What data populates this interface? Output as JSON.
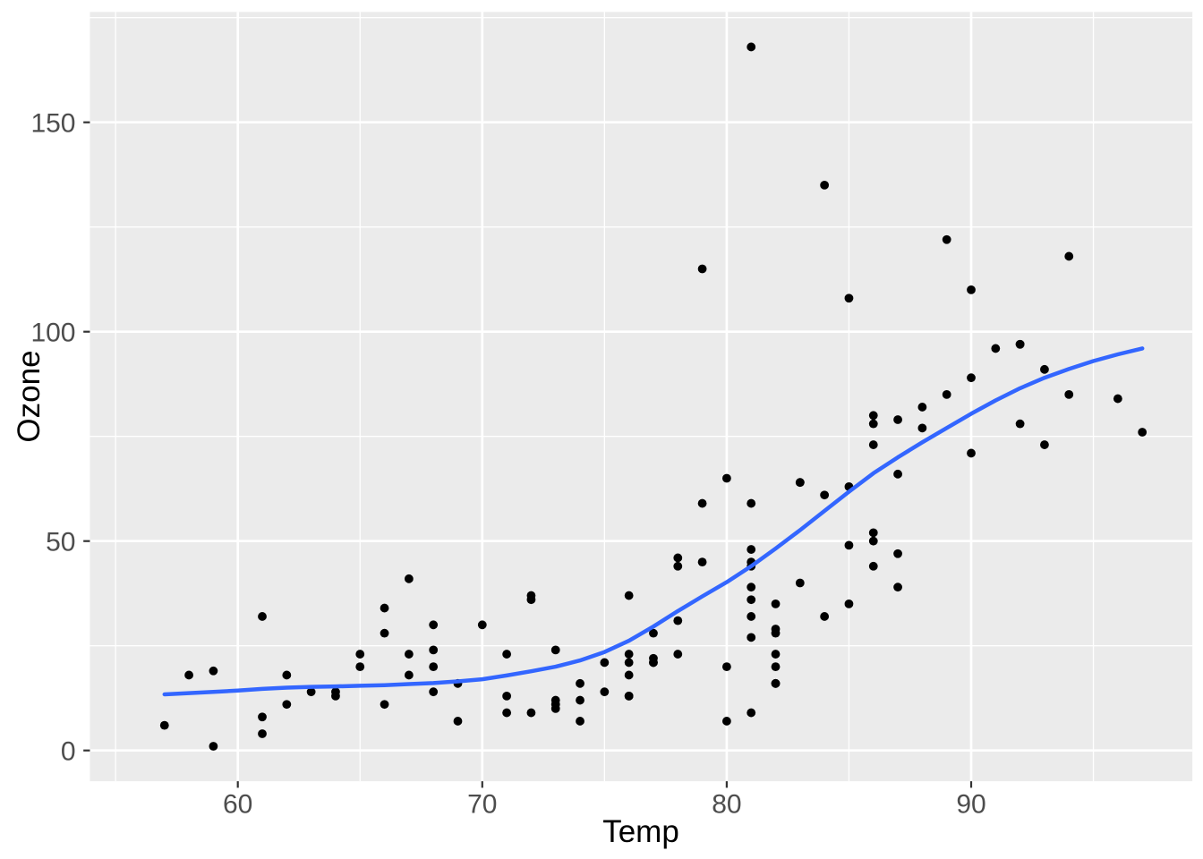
{
  "chart_data": {
    "type": "scatter",
    "title": "",
    "xlabel": "Temp",
    "ylabel": "Ozone",
    "xlim": [
      53.95,
      99.05
    ],
    "ylim": [
      -7.35,
      176.35
    ],
    "x_major_ticks": [
      60,
      70,
      80,
      90
    ],
    "x_minor_ticks": [
      55,
      65,
      75,
      85,
      95
    ],
    "y_major_ticks": [
      0,
      50,
      100,
      150
    ],
    "y_minor_ticks": [
      25,
      75,
      125,
      175
    ],
    "grid": "on",
    "legend": "none",
    "theme": {
      "panel_background": "#EBEBEB",
      "grid_color": "#FFFFFF",
      "point_color": "#000000",
      "smooth_line_color": "#3366FF",
      "tick_mark_color": "#333333",
      "tick_label_color": "#4D4D4D",
      "axis_title_color": "#000000",
      "outer_background": "#FFFFFF"
    },
    "series": [
      {
        "name": "observations",
        "geom": "point",
        "points": [
          [
            67,
            41
          ],
          [
            72,
            36
          ],
          [
            74,
            12
          ],
          [
            62,
            18
          ],
          [
            66,
            28
          ],
          [
            65,
            23
          ],
          [
            59,
            19
          ],
          [
            61,
            8
          ],
          [
            74,
            7
          ],
          [
            69,
            16
          ],
          [
            66,
            11
          ],
          [
            68,
            14
          ],
          [
            58,
            18
          ],
          [
            64,
            14
          ],
          [
            66,
            34
          ],
          [
            57,
            6
          ],
          [
            68,
            30
          ],
          [
            62,
            11
          ],
          [
            59,
            1
          ],
          [
            73,
            11
          ],
          [
            61,
            4
          ],
          [
            61,
            32
          ],
          [
            67,
            23
          ],
          [
            81,
            45
          ],
          [
            79,
            115
          ],
          [
            76,
            37
          ],
          [
            82,
            29
          ],
          [
            90,
            71
          ],
          [
            87,
            39
          ],
          [
            82,
            23
          ],
          [
            77,
            21
          ],
          [
            72,
            37
          ],
          [
            65,
            20
          ],
          [
            73,
            12
          ],
          [
            76,
            13
          ],
          [
            84,
            135
          ],
          [
            85,
            49
          ],
          [
            81,
            32
          ],
          [
            83,
            64
          ],
          [
            83,
            40
          ],
          [
            88,
            77
          ],
          [
            92,
            97
          ],
          [
            92,
            97
          ],
          [
            89,
            85
          ],
          [
            73,
            10
          ],
          [
            81,
            27
          ],
          [
            80,
            7
          ],
          [
            81,
            48
          ],
          [
            82,
            35
          ],
          [
            84,
            61
          ],
          [
            87,
            79
          ],
          [
            85,
            63
          ],
          [
            74,
            16
          ],
          [
            86,
            80
          ],
          [
            85,
            108
          ],
          [
            82,
            20
          ],
          [
            86,
            52
          ],
          [
            88,
            82
          ],
          [
            86,
            50
          ],
          [
            83,
            64
          ],
          [
            81,
            59
          ],
          [
            81,
            39
          ],
          [
            81,
            9
          ],
          [
            82,
            16
          ],
          [
            86,
            78
          ],
          [
            85,
            35
          ],
          [
            87,
            66
          ],
          [
            89,
            122
          ],
          [
            90,
            89
          ],
          [
            90,
            110
          ],
          [
            86,
            44
          ],
          [
            82,
            28
          ],
          [
            80,
            65
          ],
          [
            77,
            22
          ],
          [
            79,
            59
          ],
          [
            76,
            23
          ],
          [
            78,
            31
          ],
          [
            78,
            44
          ],
          [
            77,
            21
          ],
          [
            72,
            9
          ],
          [
            79,
            45
          ],
          [
            81,
            168
          ],
          [
            86,
            73
          ],
          [
            97,
            76
          ],
          [
            94,
            118
          ],
          [
            96,
            84
          ],
          [
            94,
            85
          ],
          [
            91,
            96
          ],
          [
            92,
            78
          ],
          [
            93,
            73
          ],
          [
            93,
            91
          ],
          [
            87,
            47
          ],
          [
            84,
            32
          ],
          [
            80,
            20
          ],
          [
            78,
            23
          ],
          [
            75,
            21
          ],
          [
            73,
            24
          ],
          [
            81,
            44
          ],
          [
            76,
            21
          ],
          [
            77,
            28
          ],
          [
            71,
            9
          ],
          [
            71,
            13
          ],
          [
            78,
            46
          ],
          [
            67,
            18
          ],
          [
            76,
            13
          ],
          [
            68,
            24
          ],
          [
            82,
            16
          ],
          [
            64,
            13
          ],
          [
            71,
            23
          ],
          [
            81,
            36
          ],
          [
            69,
            7
          ],
          [
            63,
            14
          ],
          [
            70,
            30
          ],
          [
            75,
            14
          ],
          [
            76,
            18
          ],
          [
            68,
            20
          ]
        ]
      },
      {
        "name": "loess-smooth",
        "geom": "line",
        "points": [
          [
            57,
            13.4
          ],
          [
            58,
            13.7
          ],
          [
            59,
            14.0
          ],
          [
            60,
            14.3
          ],
          [
            61,
            14.7
          ],
          [
            62,
            15.0
          ],
          [
            63,
            15.2
          ],
          [
            64,
            15.3
          ],
          [
            65,
            15.45
          ],
          [
            66,
            15.6
          ],
          [
            67,
            15.85
          ],
          [
            68,
            16.1
          ],
          [
            69,
            16.5
          ],
          [
            70,
            17.0
          ],
          [
            71,
            17.9
          ],
          [
            72,
            18.9
          ],
          [
            73,
            20.0
          ],
          [
            74,
            21.5
          ],
          [
            75,
            23.5
          ],
          [
            76,
            26.2
          ],
          [
            77,
            29.6
          ],
          [
            78,
            33.3
          ],
          [
            79,
            36.8
          ],
          [
            80,
            40.2
          ],
          [
            81,
            44.0
          ],
          [
            82,
            48.2
          ],
          [
            83,
            52.6
          ],
          [
            84,
            57.2
          ],
          [
            85,
            61.8
          ],
          [
            86,
            66.2
          ],
          [
            87,
            70.0
          ],
          [
            88,
            73.6
          ],
          [
            89,
            77.0
          ],
          [
            90,
            80.4
          ],
          [
            91,
            83.6
          ],
          [
            92,
            86.5
          ],
          [
            93,
            89.0
          ],
          [
            94,
            91.1
          ],
          [
            95,
            93.0
          ],
          [
            96,
            94.6
          ],
          [
            97,
            96.0
          ]
        ]
      }
    ]
  }
}
